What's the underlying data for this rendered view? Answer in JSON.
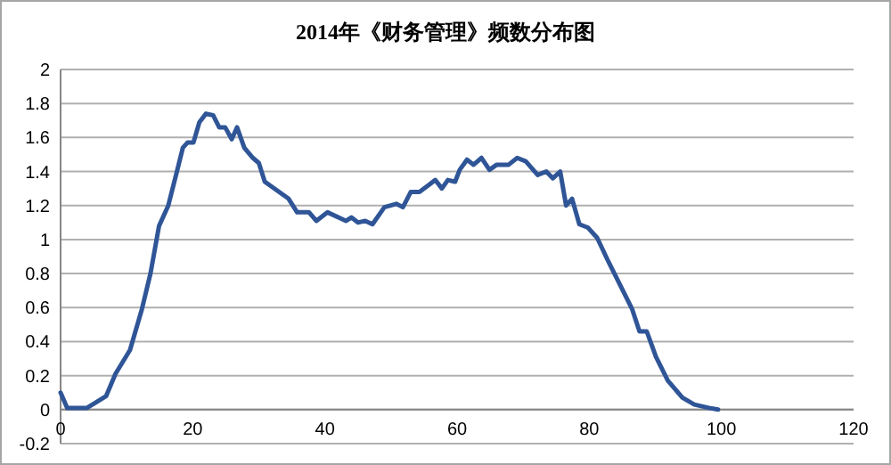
{
  "chart_data": {
    "type": "line",
    "title": "2014年《财务管理》频数分布图",
    "series": [
      {
        "color": "#2f5597",
        "x": [
          0,
          1,
          4,
          6.9,
          8.3,
          10.5,
          12.3,
          13.6,
          14.9,
          16.3,
          17.6,
          18.5,
          19.2,
          20.1,
          21,
          22,
          23.1,
          24,
          24.9,
          25.9,
          26.7,
          27.8,
          29.1,
          30,
          30.9,
          32.7,
          34.5,
          35.8,
          37.6,
          38.7,
          40.4,
          43.2,
          44,
          45,
          46.1,
          47.2,
          49,
          50.8,
          51.8,
          53,
          54.3,
          55.7,
          56.7,
          57.7,
          58.6,
          59.7,
          60.4,
          61.5,
          62.5,
          63.7,
          64.9,
          66,
          67.8,
          69.1,
          70.4,
          72.2,
          73.5,
          74.5,
          75.6,
          76.5,
          77.4,
          78.5,
          79.8,
          81.2,
          82.9,
          84.7,
          86.5,
          87.6,
          88.7,
          90.1,
          91.9,
          94.1,
          95.9,
          98.1,
          99.5
        ],
        "values": [
          0.1,
          0.01,
          0.01,
          0.08,
          0.21,
          0.35,
          0.59,
          0.8,
          1.08,
          1.2,
          1.4,
          1.54,
          1.57,
          1.57,
          1.69,
          1.74,
          1.73,
          1.66,
          1.66,
          1.59,
          1.66,
          1.54,
          1.48,
          1.45,
          1.34,
          1.29,
          1.24,
          1.16,
          1.16,
          1.11,
          1.16,
          1.11,
          1.13,
          1.1,
          1.11,
          1.09,
          1.19,
          1.21,
          1.19,
          1.28,
          1.28,
          1.32,
          1.35,
          1.3,
          1.35,
          1.34,
          1.41,
          1.47,
          1.44,
          1.48,
          1.41,
          1.44,
          1.44,
          1.48,
          1.46,
          1.38,
          1.4,
          1.36,
          1.4,
          1.2,
          1.24,
          1.09,
          1.07,
          1.01,
          0.87,
          0.73,
          0.59,
          0.46,
          0.46,
          0.31,
          0.17,
          0.07,
          0.03,
          0.01,
          0
        ]
      }
    ],
    "xlim": [
      0,
      120
    ],
    "xticks": [
      0,
      20,
      40,
      60,
      80,
      100,
      120
    ],
    "ylim": [
      -0.2,
      2
    ],
    "yticks": [
      -0.2,
      0,
      0.2,
      0.4,
      0.6,
      0.8,
      1,
      1.2,
      1.4,
      1.6,
      1.8,
      2
    ],
    "grid": "y",
    "marker": "none",
    "line_style": "solid"
  }
}
